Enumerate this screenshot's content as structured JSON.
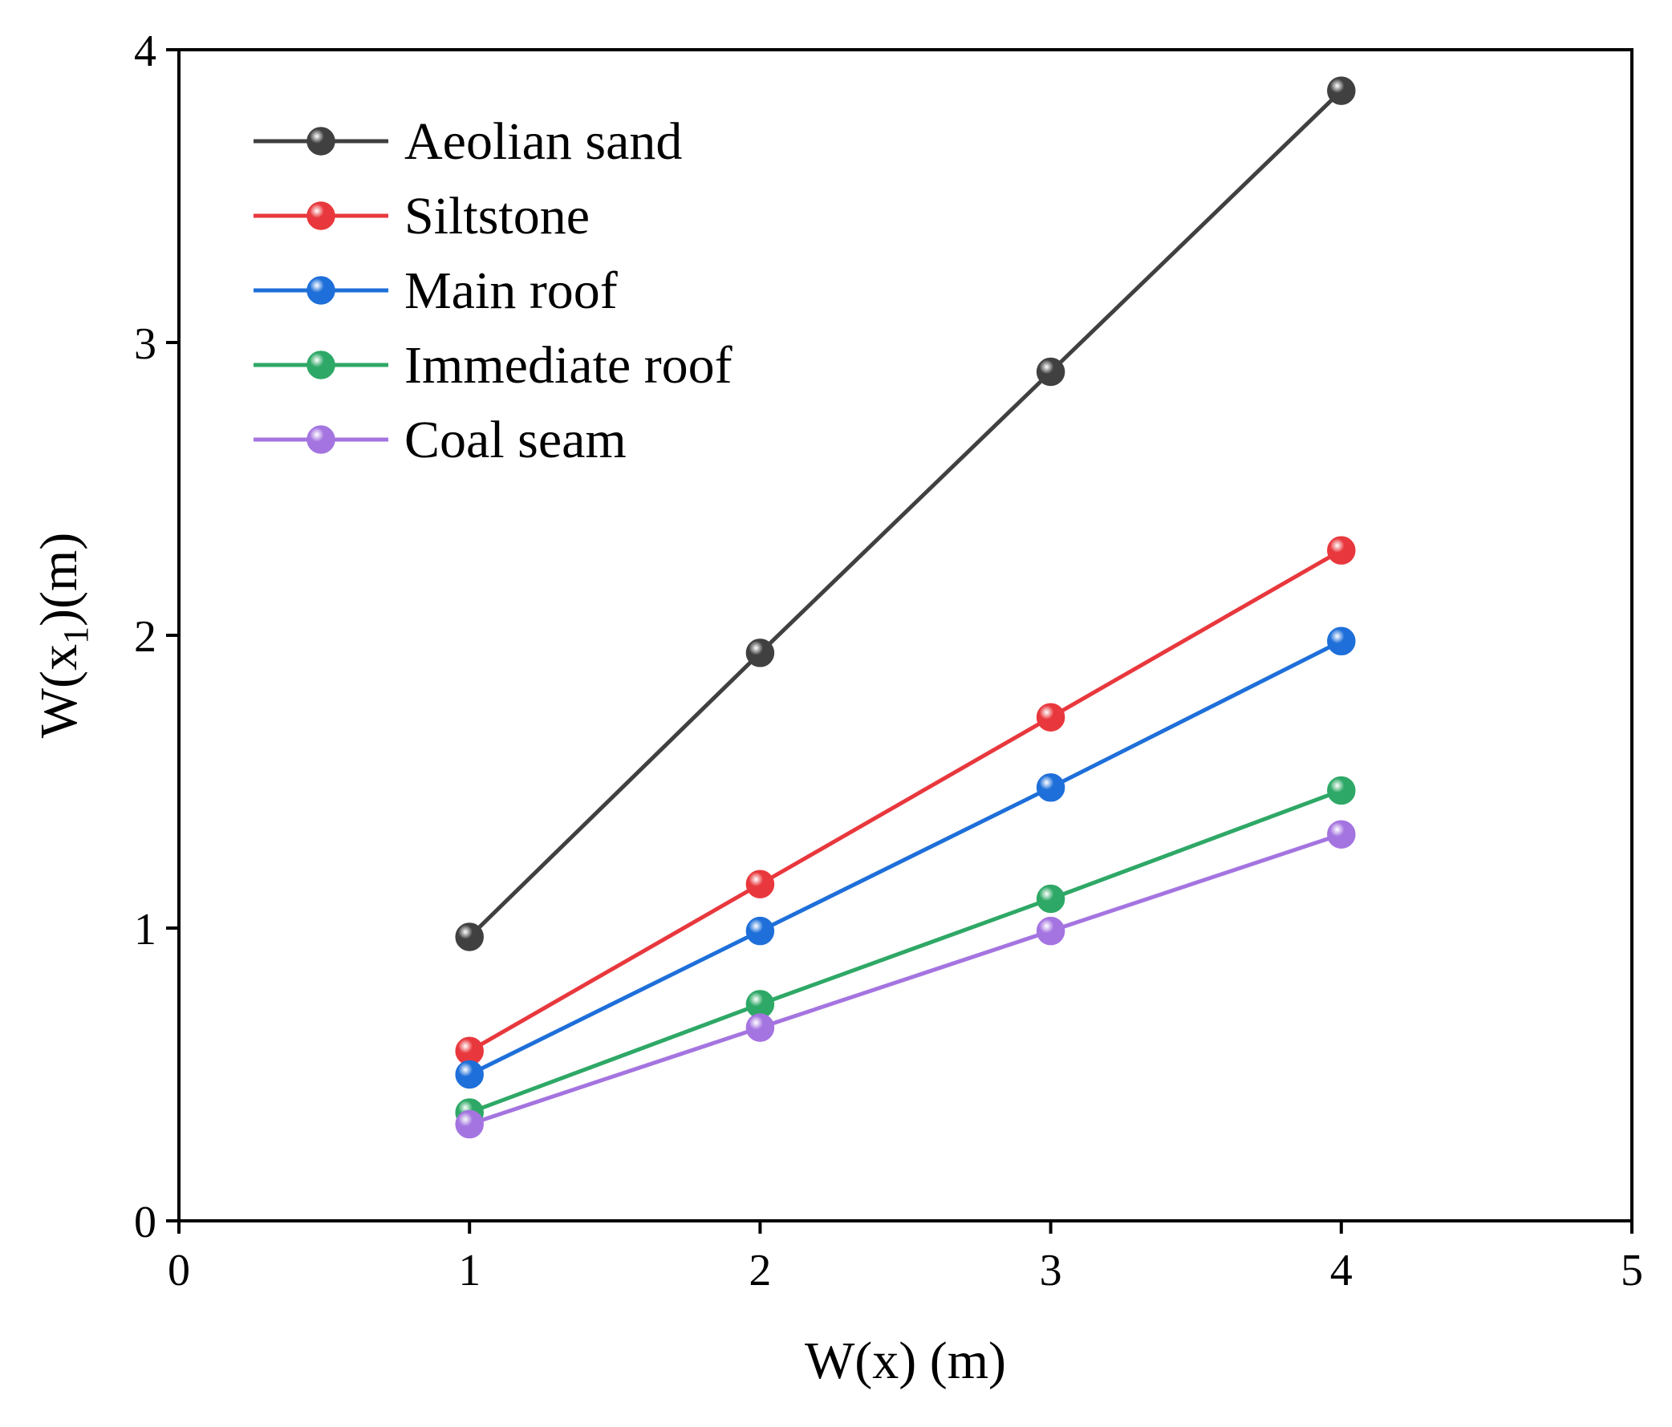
{
  "chart_data": {
    "type": "line",
    "title": "",
    "xlabel": "W(x) (m)",
    "ylabel": {
      "main": "W(x",
      "subscript": "1",
      "suffix": ")(m)"
    },
    "xlim": [
      0,
      5
    ],
    "ylim": [
      0,
      4
    ],
    "xticks": [
      0,
      1,
      2,
      3,
      4,
      5
    ],
    "yticks": [
      0,
      1,
      2,
      3,
      4
    ],
    "x": [
      1,
      2,
      3,
      4
    ],
    "legend_position": "top-left",
    "grid": false,
    "series": [
      {
        "name": "Aeolian sand",
        "color": "#404040",
        "values": [
          0.97,
          1.94,
          2.9,
          3.86
        ]
      },
      {
        "name": "Siltstone",
        "color": "#e8383d",
        "values": [
          0.58,
          1.15,
          1.72,
          2.29
        ]
      },
      {
        "name": "Main roof",
        "color": "#1e6fd9",
        "values": [
          0.5,
          0.99,
          1.48,
          1.98
        ]
      },
      {
        "name": "Immediate roof",
        "color": "#2ea866",
        "values": [
          0.37,
          0.74,
          1.1,
          1.47
        ]
      },
      {
        "name": "Coal seam",
        "color": "#a474e0",
        "values": [
          0.33,
          0.66,
          0.99,
          1.32
        ]
      }
    ]
  }
}
